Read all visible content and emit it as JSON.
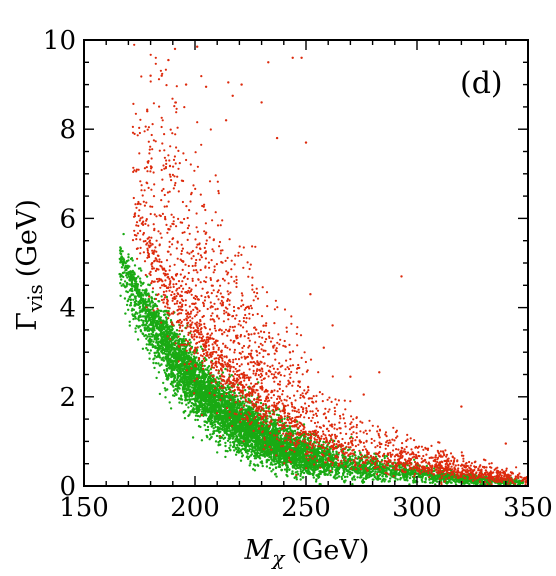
{
  "chart_data": {
    "type": "scatter",
    "title": "",
    "panel_label": "(d)",
    "xlabel": {
      "symbol": "M",
      "subscript": "χ",
      "unit": "(GeV)"
    },
    "ylabel": {
      "symbol": "Γ",
      "subscript": "vis",
      "unit": "(GeV)"
    },
    "xlim": [
      150,
      350
    ],
    "ylim": [
      0,
      10
    ],
    "x_ticks": [
      150,
      200,
      250,
      300,
      350
    ],
    "y_ticks": [
      0,
      2,
      4,
      6,
      8,
      10
    ],
    "x_minor_step": 10,
    "y_minor_step": 0.5,
    "grid": false,
    "legend": "none",
    "series": [
      {
        "color": "#1aaa14",
        "marker": "dot",
        "count": 7000,
        "band": {
          "x_range": [
            166,
            348
          ],
          "ridge": [
            [
              166,
              5.1
            ],
            [
              175,
              4.2
            ],
            [
              190,
              3.0
            ],
            [
              200,
              2.35
            ],
            [
              210,
              1.8
            ],
            [
              220,
              1.4
            ],
            [
              230,
              1.1
            ],
            [
              240,
              0.82
            ],
            [
              250,
              0.62
            ],
            [
              265,
              0.48
            ],
            [
              280,
              0.38
            ],
            [
              300,
              0.27
            ],
            [
              320,
              0.17
            ],
            [
              335,
              0.12
            ],
            [
              348,
              0.08
            ]
          ],
          "width_below": [
            [
              166,
              0.9
            ],
            [
              200,
              0.8
            ],
            [
              240,
              0.45
            ],
            [
              300,
              0.2
            ],
            [
              348,
              0.06
            ]
          ],
          "width_above": [
            [
              166,
              0.4
            ],
            [
              200,
              0.7
            ],
            [
              240,
              0.6
            ],
            [
              270,
              0.35
            ],
            [
              300,
              0.18
            ],
            [
              348,
              0.05
            ]
          ],
          "x_density": [
            [
              166,
              0.2
            ],
            [
              180,
              0.6
            ],
            [
              195,
              1.0
            ],
            [
              230,
              1.0
            ],
            [
              255,
              0.6
            ],
            [
              265,
              0.25
            ],
            [
              300,
              0.2
            ],
            [
              320,
              0.25
            ],
            [
              348,
              0.1
            ]
          ]
        }
      },
      {
        "color": "#dd2a0c",
        "marker": "dot",
        "count": 2800,
        "band": {
          "x_range": [
            172,
            350
          ],
          "ridge": [
            [
              172,
              6.5
            ],
            [
              180,
              5.5
            ],
            [
              190,
              4.6
            ],
            [
              200,
              3.8
            ],
            [
              210,
              3.2
            ],
            [
              220,
              2.6
            ],
            [
              230,
              2.1
            ],
            [
              240,
              1.7
            ],
            [
              250,
              1.35
            ],
            [
              260,
              1.05
            ],
            [
              280,
              0.7
            ],
            [
              300,
              0.5
            ],
            [
              320,
              0.32
            ],
            [
              350,
              0.12
            ]
          ],
          "width_below": [
            [
              172,
              1.2
            ],
            [
              200,
              1.3
            ],
            [
              240,
              0.9
            ],
            [
              280,
              0.35
            ],
            [
              350,
              0.08
            ]
          ],
          "width_above": [
            [
              172,
              3.2
            ],
            [
              190,
              4.5
            ],
            [
              210,
              3.0
            ],
            [
              240,
              2.0
            ],
            [
              260,
              1.2
            ],
            [
              280,
              0.7
            ],
            [
              300,
              0.5
            ],
            [
              350,
              0.12
            ]
          ],
          "x_density": [
            [
              172,
              0.4
            ],
            [
              185,
              0.9
            ],
            [
              210,
              1.0
            ],
            [
              240,
              0.8
            ],
            [
              260,
              0.5
            ],
            [
              280,
              0.3
            ],
            [
              295,
              0.45
            ],
            [
              320,
              0.5
            ],
            [
              350,
              0.3
            ]
          ]
        },
        "outliers": [
          [
            191,
            9.8
          ],
          [
            188,
            9.55
          ],
          [
            185,
            9.2
          ],
          [
            201,
            9.85
          ],
          [
            215,
            9.05
          ],
          [
            221,
            9.0
          ],
          [
            233,
            9.5
          ],
          [
            244,
            9.6
          ],
          [
            248,
            9.6
          ],
          [
            196,
            9.0
          ],
          [
            180,
            9.2
          ],
          [
            205,
            8.95
          ],
          [
            217,
            8.75
          ],
          [
            230,
            8.6
          ],
          [
            237,
            7.8
          ],
          [
            214,
            8.2
          ],
          [
            250,
            7.7
          ],
          [
            293,
            4.7
          ],
          [
            320,
            1.78
          ],
          [
            340,
            0.95
          ],
          [
            283,
            2.55
          ],
          [
            270,
            2.45
          ],
          [
            276,
            2.05
          ],
          [
            258,
            3.1
          ],
          [
            252,
            4.3
          ],
          [
            262,
            3.6
          ]
        ]
      }
    ]
  }
}
